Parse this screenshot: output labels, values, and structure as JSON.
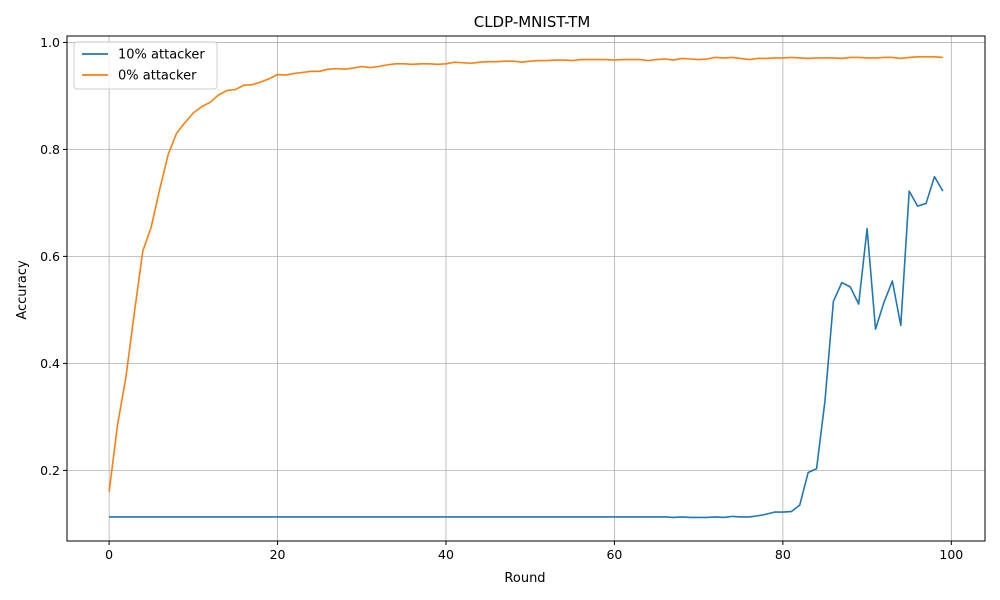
{
  "chart_data": {
    "type": "line",
    "title": "CLDP-MNIST-TM",
    "xlabel": "Round",
    "ylabel": "Accuracy",
    "xlim": [
      -5,
      104
    ],
    "ylim": [
      0.068,
      1.012
    ],
    "xticks": [
      0,
      20,
      40,
      60,
      80,
      100
    ],
    "yticks": [
      0.2,
      0.4,
      0.6,
      0.8,
      1.0
    ],
    "grid": true,
    "legend_position": "upper-left",
    "series": [
      {
        "name": "10% attacker",
        "color": "#1f77b4",
        "x": [
          0,
          1,
          2,
          3,
          4,
          5,
          6,
          7,
          8,
          9,
          10,
          11,
          12,
          13,
          14,
          15,
          16,
          17,
          18,
          19,
          20,
          21,
          22,
          23,
          24,
          25,
          26,
          27,
          28,
          29,
          30,
          31,
          32,
          33,
          34,
          35,
          36,
          37,
          38,
          39,
          40,
          41,
          42,
          43,
          44,
          45,
          46,
          47,
          48,
          49,
          50,
          51,
          52,
          53,
          54,
          55,
          56,
          57,
          58,
          59,
          60,
          61,
          62,
          63,
          64,
          65,
          66,
          67,
          68,
          69,
          70,
          71,
          72,
          73,
          74,
          75,
          76,
          77,
          78,
          79,
          80,
          81,
          82,
          83,
          84,
          85,
          86,
          87,
          88,
          89,
          90,
          91,
          92,
          93,
          94,
          95,
          96,
          97,
          98,
          99
        ],
        "values": [
          0.113,
          0.113,
          0.113,
          0.113,
          0.113,
          0.113,
          0.113,
          0.113,
          0.113,
          0.113,
          0.113,
          0.113,
          0.113,
          0.113,
          0.113,
          0.113,
          0.113,
          0.113,
          0.113,
          0.113,
          0.113,
          0.113,
          0.113,
          0.113,
          0.113,
          0.113,
          0.113,
          0.113,
          0.113,
          0.113,
          0.113,
          0.113,
          0.113,
          0.113,
          0.113,
          0.113,
          0.113,
          0.113,
          0.113,
          0.113,
          0.113,
          0.113,
          0.113,
          0.113,
          0.113,
          0.113,
          0.113,
          0.113,
          0.113,
          0.113,
          0.113,
          0.113,
          0.113,
          0.113,
          0.113,
          0.113,
          0.113,
          0.113,
          0.113,
          0.113,
          0.113,
          0.113,
          0.113,
          0.113,
          0.113,
          0.113,
          0.113,
          0.112,
          0.113,
          0.112,
          0.112,
          0.112,
          0.113,
          0.112,
          0.114,
          0.113,
          0.113,
          0.115,
          0.118,
          0.122,
          0.122,
          0.123,
          0.135,
          0.196,
          0.203,
          0.33,
          0.516,
          0.551,
          0.543,
          0.511,
          0.652,
          0.464,
          0.514,
          0.554,
          0.471,
          0.722,
          0.694,
          0.699,
          0.749,
          0.722
        ]
      },
      {
        "name": "0% attacker",
        "color": "#ff7f0e",
        "x": [
          0,
          1,
          2,
          3,
          4,
          5,
          6,
          7,
          8,
          9,
          10,
          11,
          12,
          13,
          14,
          15,
          16,
          17,
          18,
          19,
          20,
          21,
          22,
          23,
          24,
          25,
          26,
          27,
          28,
          29,
          30,
          31,
          32,
          33,
          34,
          35,
          36,
          37,
          38,
          39,
          40,
          41,
          42,
          43,
          44,
          45,
          46,
          47,
          48,
          49,
          50,
          51,
          52,
          53,
          54,
          55,
          56,
          57,
          58,
          59,
          60,
          61,
          62,
          63,
          64,
          65,
          66,
          67,
          68,
          69,
          70,
          71,
          72,
          73,
          74,
          75,
          76,
          77,
          78,
          79,
          80,
          81,
          82,
          83,
          84,
          85,
          86,
          87,
          88,
          89,
          90,
          91,
          92,
          93,
          94,
          95,
          96,
          97,
          98,
          99
        ],
        "values": [
          0.16,
          0.285,
          0.375,
          0.495,
          0.61,
          0.655,
          0.725,
          0.79,
          0.83,
          0.85,
          0.868,
          0.88,
          0.888,
          0.902,
          0.91,
          0.912,
          0.92,
          0.921,
          0.926,
          0.932,
          0.94,
          0.939,
          0.942,
          0.944,
          0.946,
          0.946,
          0.95,
          0.951,
          0.95,
          0.952,
          0.955,
          0.953,
          0.955,
          0.958,
          0.96,
          0.96,
          0.959,
          0.96,
          0.96,
          0.959,
          0.96,
          0.963,
          0.962,
          0.961,
          0.963,
          0.964,
          0.964,
          0.965,
          0.965,
          0.963,
          0.965,
          0.966,
          0.966,
          0.967,
          0.967,
          0.966,
          0.968,
          0.968,
          0.968,
          0.968,
          0.967,
          0.968,
          0.968,
          0.968,
          0.966,
          0.968,
          0.969,
          0.967,
          0.97,
          0.969,
          0.968,
          0.969,
          0.972,
          0.971,
          0.972,
          0.97,
          0.968,
          0.97,
          0.97,
          0.971,
          0.971,
          0.972,
          0.971,
          0.97,
          0.971,
          0.971,
          0.971,
          0.97,
          0.972,
          0.972,
          0.971,
          0.971,
          0.972,
          0.972,
          0.97,
          0.972,
          0.973,
          0.973,
          0.973,
          0.972
        ]
      }
    ]
  }
}
